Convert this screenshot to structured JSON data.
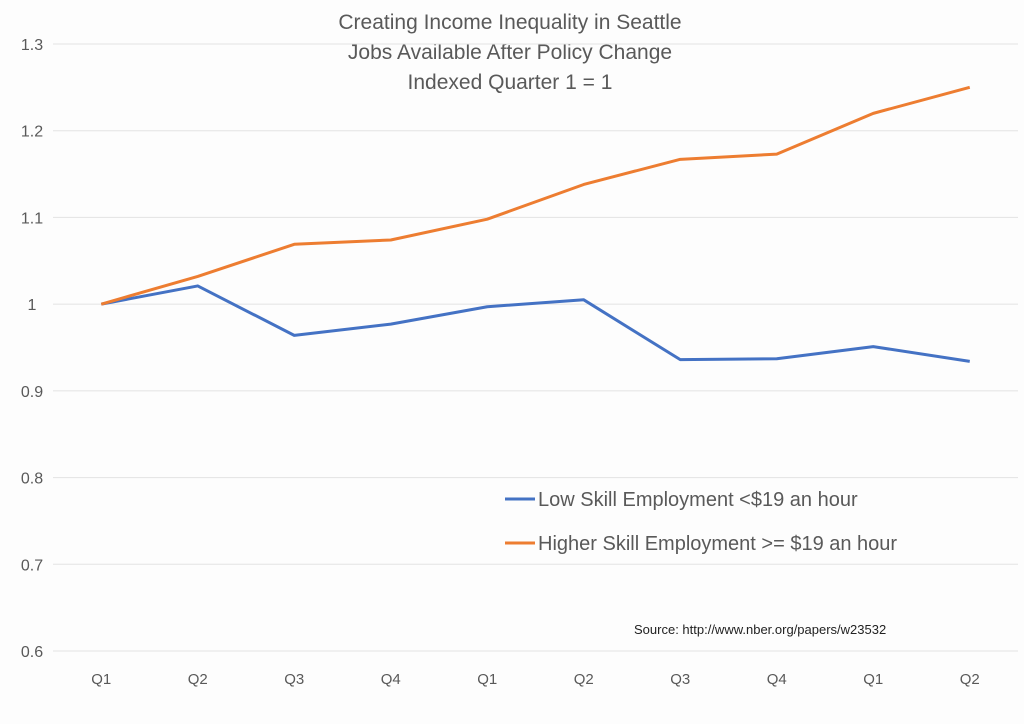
{
  "chart_data": {
    "type": "line",
    "title": [
      "Creating Income Inequality in Seattle",
      "Jobs Available After Policy Change",
      "Indexed Quarter 1 = 1"
    ],
    "categories": [
      "Q1",
      "Q2",
      "Q3",
      "Q4",
      "Q1",
      "Q2",
      "Q3",
      "Q4",
      "Q1",
      "Q2"
    ],
    "ylim": [
      0.6,
      1.3
    ],
    "yticks": [
      "0.6",
      "0.7",
      "0.8",
      "0.9",
      "1",
      "1.1",
      "1.2",
      "1.3"
    ],
    "grid": true,
    "legend_position": "bottom-right",
    "series": [
      {
        "name": "Low Skill Employment <$19 an hour",
        "color": "#4472c4",
        "values": [
          1.0,
          1.021,
          0.964,
          0.977,
          0.997,
          1.005,
          0.936,
          0.937,
          0.951,
          0.934
        ]
      },
      {
        "name": "Higher Skill Employment >= $19 an hour",
        "color": "#ed7d31",
        "values": [
          1.0,
          1.032,
          1.069,
          1.074,
          1.098,
          1.138,
          1.167,
          1.173,
          1.22,
          1.25
        ]
      }
    ],
    "annotation": "Source:  http://www.nber.org/papers/w23532"
  }
}
